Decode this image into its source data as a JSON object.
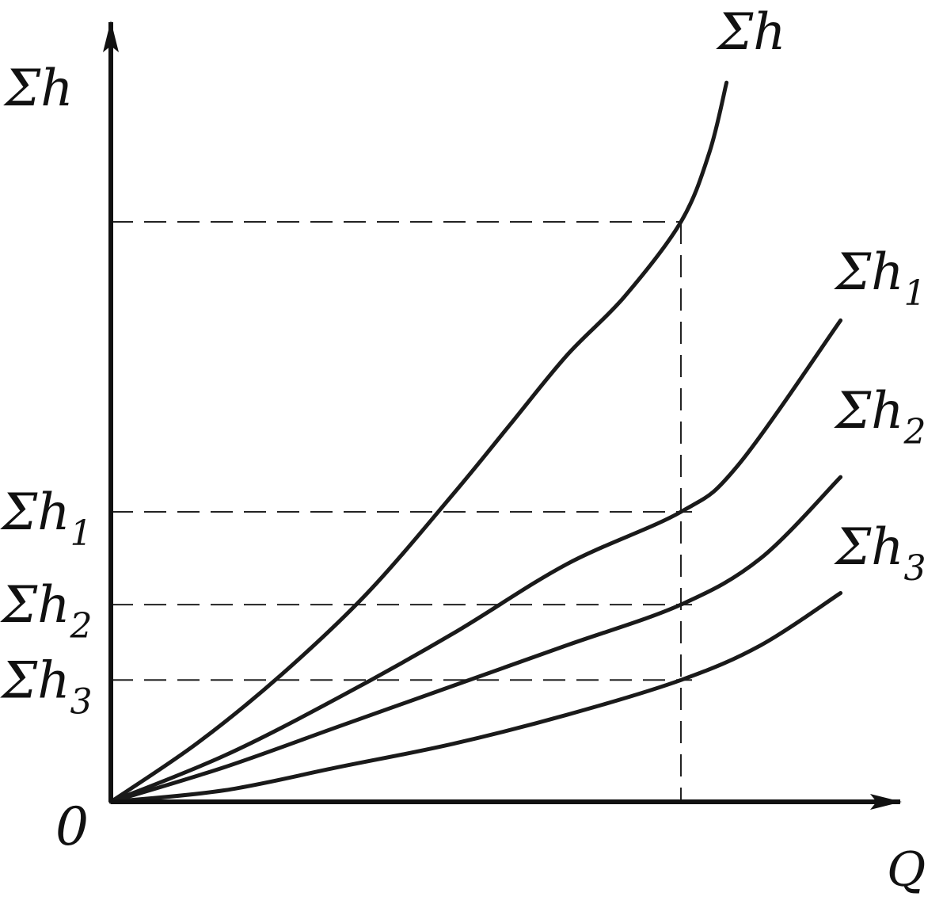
{
  "chart_data": {
    "type": "line",
    "title": "",
    "xlabel": "Q",
    "ylabel": "Σh",
    "origin_label": "0",
    "x_range": [
      0,
      1.39
    ],
    "y_range": [
      0,
      1.27
    ],
    "grid": false,
    "colors": {
      "axis": "#111111",
      "curve": "#1a1a1a",
      "guide": "#222222",
      "background": "#ffffff"
    },
    "reference_x": 1.0,
    "y_tick_labels": [
      {
        "main": "Σh",
        "sub": "1",
        "value": 0.5
      },
      {
        "main": "Σh",
        "sub": "2",
        "value": 0.34
      },
      {
        "main": "Σh",
        "sub": "3",
        "value": 0.21
      }
    ],
    "top_reference_value": 1.0,
    "series": [
      {
        "name": "Σh",
        "label_main": "Σh",
        "label_sub": "",
        "x": [
          0,
          0.15,
          0.3,
          0.45,
          0.6,
          0.7,
          0.8,
          0.9,
          1.0,
          1.05,
          1.08
        ],
        "y": [
          0,
          0.1,
          0.22,
          0.36,
          0.53,
          0.65,
          0.77,
          0.87,
          1.0,
          1.12,
          1.24
        ]
      },
      {
        "name": "Σh1",
        "label_main": "Σh",
        "label_sub": "1",
        "x": [
          0,
          0.2,
          0.4,
          0.6,
          0.8,
          1.0,
          1.1,
          1.28
        ],
        "y": [
          0,
          0.08,
          0.18,
          0.29,
          0.41,
          0.5,
          0.58,
          0.83
        ]
      },
      {
        "name": "Σh2",
        "label_main": "Σh",
        "label_sub": "2",
        "x": [
          0,
          0.2,
          0.4,
          0.6,
          0.8,
          1.0,
          1.14,
          1.28
        ],
        "y": [
          0,
          0.06,
          0.13,
          0.2,
          0.27,
          0.34,
          0.42,
          0.56
        ]
      },
      {
        "name": "Σh3",
        "label_main": "Σh",
        "label_sub": "3",
        "x": [
          0,
          0.2,
          0.4,
          0.6,
          0.8,
          1.0,
          1.14,
          1.28
        ],
        "y": [
          0,
          0.02,
          0.06,
          0.1,
          0.15,
          0.21,
          0.27,
          0.36
        ]
      }
    ]
  }
}
